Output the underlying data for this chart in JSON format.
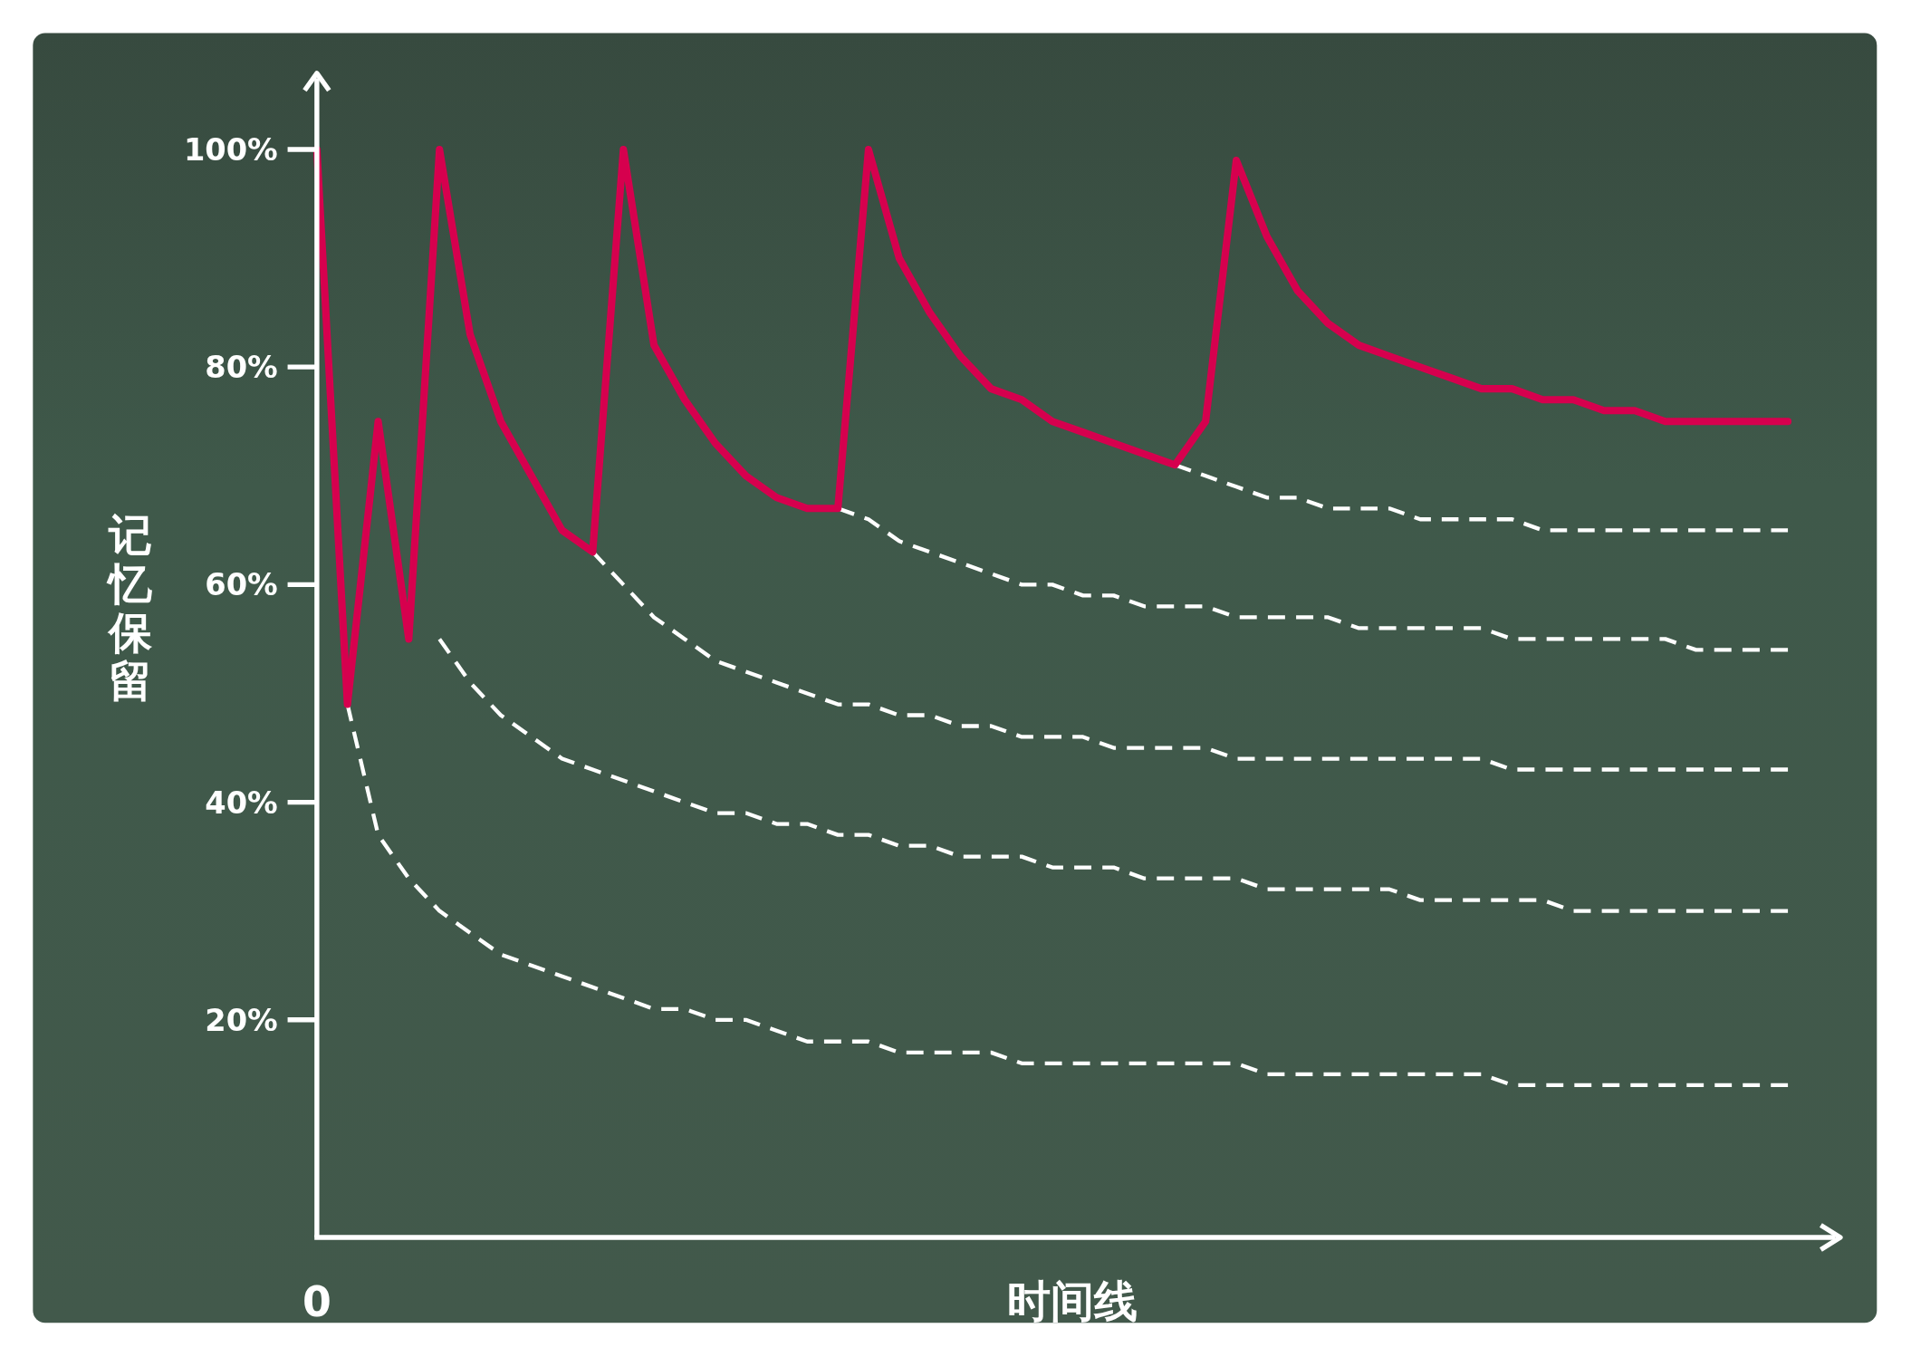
{
  "chart_data": {
    "type": "line",
    "xlabel": "时间线",
    "ylabel": "记忆保留",
    "categories": [
      "0",
      null,
      null,
      null,
      null,
      null,
      null,
      null,
      null,
      null,
      null,
      null,
      null,
      null,
      null,
      null,
      null,
      null,
      null,
      null,
      null,
      null,
      null,
      null,
      null,
      null,
      null,
      null,
      null,
      null,
      null,
      null,
      null,
      null,
      null,
      null,
      null,
      null,
      null,
      null,
      null,
      null,
      null,
      null,
      null,
      null,
      null,
      null,
      null
    ],
    "ylim": [
      0,
      107
    ],
    "yticks": [
      {
        "value": 20,
        "label": "20%"
      },
      {
        "value": 40,
        "label": "40%"
      },
      {
        "value": 60,
        "label": "60%"
      },
      {
        "value": 80,
        "label": "80%"
      },
      {
        "value": 100,
        "label": "100%"
      }
    ],
    "series": [
      {
        "color": "#ffffff",
        "line_style": "dashed",
        "values": [
          null,
          49,
          37,
          33,
          30,
          28,
          26,
          25,
          24,
          23,
          22,
          21,
          21,
          20,
          20,
          19,
          18,
          18,
          18,
          17,
          17,
          17,
          17,
          16,
          16,
          16,
          16,
          16,
          16,
          16,
          16,
          15,
          15,
          15,
          15,
          15,
          15,
          15,
          15,
          14,
          14,
          14,
          14,
          14,
          14,
          14,
          14,
          14,
          14
        ]
      },
      {
        "color": "#ffffff",
        "line_style": "dashed",
        "values": [
          null,
          null,
          null,
          null,
          55,
          51,
          48,
          46,
          44,
          43,
          42,
          41,
          40,
          39,
          39,
          38,
          38,
          37,
          37,
          36,
          36,
          35,
          35,
          35,
          34,
          34,
          34,
          33,
          33,
          33,
          33,
          32,
          32,
          32,
          32,
          32,
          31,
          31,
          31,
          31,
          31,
          30,
          30,
          30,
          30,
          30,
          30,
          30,
          30
        ]
      },
      {
        "color": "#ffffff",
        "line_style": "dashed",
        "values": [
          null,
          null,
          null,
          null,
          null,
          null,
          null,
          null,
          null,
          63,
          60,
          57,
          55,
          53,
          52,
          51,
          50,
          49,
          49,
          48,
          48,
          47,
          47,
          46,
          46,
          46,
          45,
          45,
          45,
          45,
          44,
          44,
          44,
          44,
          44,
          44,
          44,
          44,
          44,
          43,
          43,
          43,
          43,
          43,
          43,
          43,
          43,
          43,
          43
        ]
      },
      {
        "color": "#ffffff",
        "line_style": "dashed",
        "values": [
          null,
          null,
          null,
          null,
          null,
          null,
          null,
          null,
          null,
          null,
          null,
          null,
          null,
          null,
          null,
          null,
          null,
          67,
          66,
          64,
          63,
          62,
          61,
          60,
          60,
          59,
          59,
          58,
          58,
          58,
          57,
          57,
          57,
          57,
          56,
          56,
          56,
          56,
          56,
          55,
          55,
          55,
          55,
          55,
          55,
          54,
          54,
          54,
          54
        ]
      },
      {
        "color": "#ffffff",
        "line_style": "dashed",
        "values": [
          null,
          null,
          null,
          null,
          null,
          null,
          null,
          null,
          null,
          null,
          null,
          null,
          null,
          null,
          null,
          null,
          null,
          null,
          null,
          null,
          null,
          null,
          null,
          null,
          null,
          null,
          null,
          null,
          71,
          70,
          69,
          68,
          68,
          67,
          67,
          67,
          66,
          66,
          66,
          66,
          65,
          65,
          65,
          65,
          65,
          65,
          65,
          65,
          65
        ]
      },
      {
        "color": "#d6004e",
        "line_style": "solid",
        "values": [
          100,
          49,
          75,
          55,
          100,
          83,
          75,
          70,
          65,
          63,
          100,
          82,
          77,
          73,
          70,
          68,
          67,
          67,
          100,
          90,
          85,
          81,
          78,
          77,
          75,
          74,
          73,
          72,
          71,
          75,
          99,
          92,
          87,
          84,
          82,
          81,
          80,
          79,
          78,
          78,
          77,
          77,
          76,
          76,
          75,
          75,
          75,
          75,
          75
        ]
      }
    ]
  }
}
